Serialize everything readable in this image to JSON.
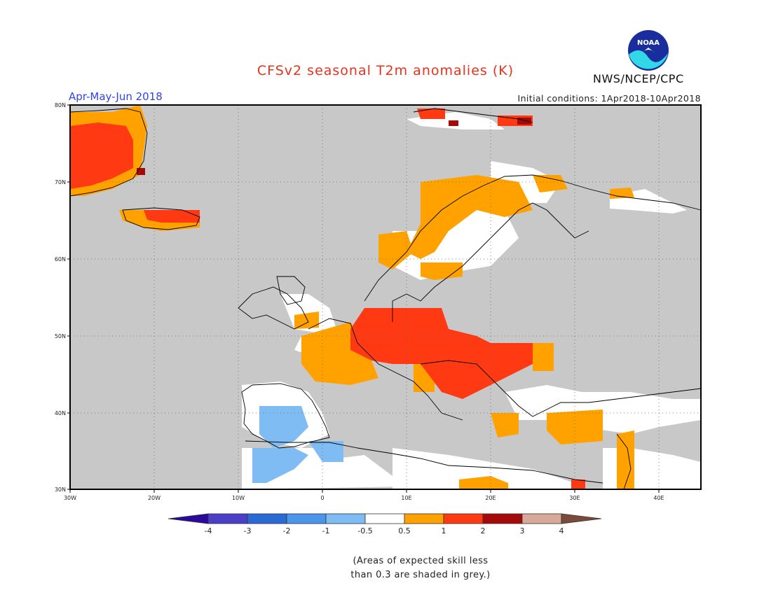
{
  "header": {
    "title": "CFSv2 seasonal T2m anomalies (K)",
    "season": "Apr-May-Jun 2018",
    "initial_conditions": "Initial conditions: 1Apr2018-10Apr2018",
    "organization": "NWS/NCEP/CPC",
    "logo_text": "NOAA"
  },
  "axes": {
    "lat_labels": [
      "30N",
      "40N",
      "50N",
      "60N",
      "70N",
      "80N"
    ],
    "lon_labels": [
      "30W",
      "20W",
      "10W",
      "0",
      "10E",
      "20E",
      "30E",
      "40E"
    ]
  },
  "colorbar": {
    "labels": [
      "-4",
      "-3",
      "-2",
      "-1",
      "-0.5",
      "0.5",
      "1",
      "2",
      "3",
      "4"
    ],
    "colors": {
      "lt-4": "#2a0a9c",
      "-4_-3": "#4b3fc8",
      "-3_-2": "#2a6ad4",
      "-2_-1": "#4a96ec",
      "-1_-0.5": "#80bcf4",
      "-0.5_0.5": "#ffffff",
      "0.5_1": "#ffa200",
      "1_2": "#ff3a12",
      "2_3": "#a50a0a",
      "3_4": "#d8a898",
      "gt4": "#7a4a3a"
    },
    "grey": "#c8c8c8"
  },
  "note": {
    "line1": "(Areas of expected skill less",
    "line2": "than 0.3 are shaded in grey.)"
  }
}
